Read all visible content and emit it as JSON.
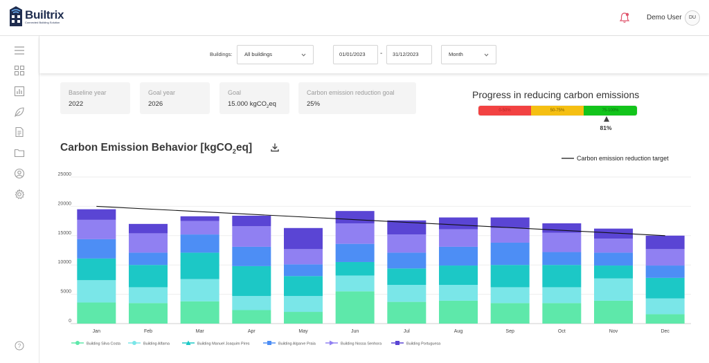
{
  "app": {
    "brand_name": "Builtrix",
    "brand_tagline": "Connected Building Solution",
    "user_name": "Demo User",
    "user_initials": "DU"
  },
  "colors": {
    "accent": "#1f2d4f",
    "notification": "#e0566d"
  },
  "sidebar": {
    "items": [
      {
        "icon": "menu-icon"
      },
      {
        "icon": "dashboard-icon"
      },
      {
        "icon": "bar-chart-icon"
      },
      {
        "icon": "leaf-icon"
      },
      {
        "icon": "document-icon"
      },
      {
        "icon": "folder-icon"
      },
      {
        "icon": "user-icon"
      },
      {
        "icon": "settings-icon"
      }
    ],
    "help_icon": "help-icon"
  },
  "filters": {
    "buildings_label": "Buildings:",
    "buildings_value": "All buildings",
    "date_from": "01/01/2023",
    "date_separator": "-",
    "date_to": "31/12/2023",
    "period_value": "Month"
  },
  "kpis": [
    {
      "label": "Baseline year",
      "value": "2022"
    },
    {
      "label": "Goal year",
      "value": "2026"
    },
    {
      "label": "Goal",
      "value_prefix": "15.000 kgCO",
      "value_sub": "2",
      "value_suffix": "eq"
    },
    {
      "label": "Carbon emission reduction goal",
      "value": "25%"
    }
  ],
  "progress": {
    "title": "Progress in reducing carbon emissions",
    "segments": [
      {
        "label": "0-50%",
        "color": "#f24242"
      },
      {
        "label": "50-75%",
        "color": "#f5bf12"
      },
      {
        "label": "75-100%",
        "color": "#12c41b"
      }
    ],
    "value": 81,
    "value_label": "81%"
  },
  "chart": {
    "title_prefix": "Carbon Emission Behavior [kgCO",
    "title_sub": "2",
    "title_suffix": "eq]",
    "download_icon": "download-icon",
    "target_legend": "Carbon emission reduction target"
  },
  "chart_data": {
    "type": "bar",
    "stacked": true,
    "categories": [
      "Jan",
      "Feb",
      "Mar",
      "Apr",
      "May",
      "Jun",
      "Jul",
      "Aug",
      "Sep",
      "Oct",
      "Nov",
      "Dec"
    ],
    "ylim": [
      0,
      25000
    ],
    "yticks": [
      0,
      5000,
      10000,
      15000,
      20000,
      25000
    ],
    "grid": true,
    "legend_position": "bottom",
    "series": [
      {
        "name": "Building Silva Costa",
        "color": "#5ee8aa",
        "marker": "circle",
        "values": [
          3600,
          3500,
          3800,
          2300,
          2000,
          5500,
          3700,
          3900,
          3500,
          3500,
          3900,
          1600
        ]
      },
      {
        "name": "Building Alfama",
        "color": "#7ae6e8",
        "marker": "circle",
        "values": [
          3800,
          2700,
          3800,
          2400,
          2700,
          2700,
          2900,
          2700,
          2700,
          2700,
          3800,
          2700
        ]
      },
      {
        "name": "Building Manuel Joaquim Pires",
        "color": "#1cc8c6",
        "marker": "triangle",
        "values": [
          3700,
          3800,
          4500,
          5100,
          3400,
          2300,
          2800,
          3300,
          3800,
          3800,
          2200,
          3500
        ]
      },
      {
        "name": "Building Algarve Praia",
        "color": "#4d8ef5",
        "marker": "square",
        "values": [
          3300,
          2100,
          3100,
          3300,
          2000,
          3100,
          2700,
          3200,
          3800,
          2200,
          2200,
          2100
        ]
      },
      {
        "name": "Building Nossa Senhora",
        "color": "#9080f2",
        "marker": "triangle-right",
        "values": [
          3300,
          3300,
          2300,
          3500,
          2600,
          3500,
          3100,
          3000,
          2500,
          3300,
          2400,
          2800
        ]
      },
      {
        "name": "Building Portuguesa",
        "color": "#5a45d4",
        "marker": "square",
        "values": [
          1800,
          1600,
          800,
          1800,
          3600,
          2100,
          2400,
          2000,
          1800,
          1600,
          1700,
          2300
        ]
      }
    ],
    "target_line": {
      "name": "Carbon emission reduction target",
      "start": 20000,
      "end": 15000,
      "color": "#111111"
    }
  }
}
